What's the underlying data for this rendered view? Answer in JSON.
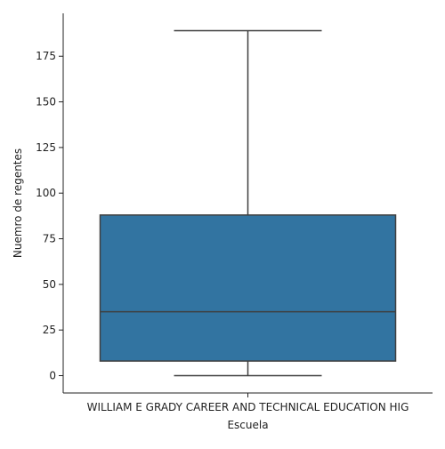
{
  "chart_data": {
    "type": "box",
    "xlabel": "Escuela",
    "ylabel": "Nuemro de regentes",
    "categories": [
      "WILLIAM E GRADY CAREER AND TECHNICAL EDUCATION HIG"
    ],
    "boxes": [
      {
        "category": "WILLIAM E GRADY CAREER AND TECHNICAL EDUCATION HIG",
        "whisker_low": 0,
        "q1": 8,
        "median": 35,
        "q3": 88,
        "whisker_high": 189
      }
    ],
    "yticks": [
      0,
      25,
      50,
      75,
      100,
      125,
      150,
      175
    ],
    "ylim": [
      -9.5,
      198.5
    ],
    "grid": false,
    "colors": {
      "box_fill": "#3274a1",
      "line": "#3f3f3f",
      "axis": "#222222"
    }
  }
}
